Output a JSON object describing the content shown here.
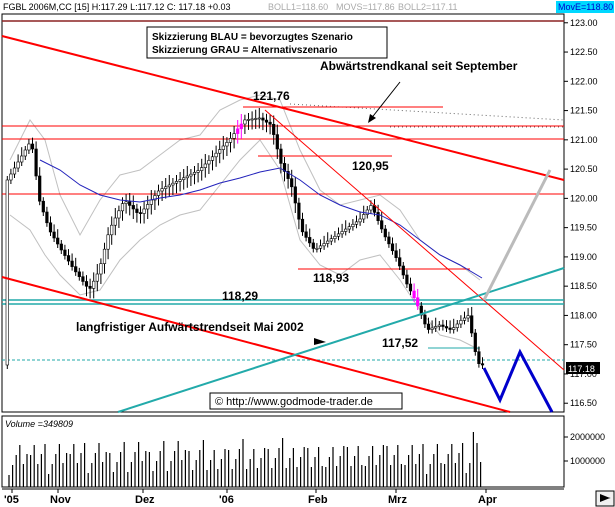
{
  "header": {
    "info": "FGBL 2006M,CC [15] H:117.29 L:117.12 C: 117.18 +0.03",
    "boll1": "BOLL1=118.60",
    "movs": "MOVS=117.86",
    "boll2": "BOLL2=117.11",
    "move": "MovE=118.80"
  },
  "legend_box": {
    "line1": "Skizzierung BLAU = bevorzugtes Szenario",
    "line2": "Skizzierung GRAU = Alternativszenario"
  },
  "labels": {
    "channel": "Abwärtstrendkanal seit September",
    "uptrend": "langfristiger Aufwärtstrendseit Mai 2002",
    "copyright": "© http://www.godmode-trader.de",
    "volume": "Volume =349809"
  },
  "price_badge": "117.18",
  "colors": {
    "red": "#ff0000",
    "teal": "#22aaaa",
    "blue": "#0000cc",
    "gray": "#c0c0c0",
    "movblue": "#2222bb"
  },
  "chart_data": {
    "type": "candlestick",
    "title": "FGBL 2006M,CC [15]",
    "y_ticks": [
      "123.00",
      "122.50",
      "122.00",
      "121.50",
      "121.00",
      "120.50",
      "120.00",
      "119.50",
      "119.00",
      "118.50",
      "118.00",
      "117.50",
      "117.00",
      "116.50"
    ],
    "y_range": [
      116.35,
      123.15
    ],
    "x_ticks": [
      "'05",
      "Nov",
      "Dez",
      "'06",
      "Feb",
      "Mrz",
      "Apr"
    ],
    "volume_ticks": [
      "2000000",
      "1000000"
    ],
    "levels": [
      {
        "label": "121,76",
        "value": 121.76
      },
      {
        "label": "120,95",
        "value": 120.95
      },
      {
        "label": "118,93",
        "value": 118.93
      },
      {
        "label": "118,29",
        "value": 118.29
      },
      {
        "label": "117,52",
        "value": 117.52
      }
    ],
    "horizontal_lines": [
      122.0,
      121.43,
      121.25,
      120.25,
      118.3,
      118.25,
      117.3
    ],
    "close": 117.18
  }
}
